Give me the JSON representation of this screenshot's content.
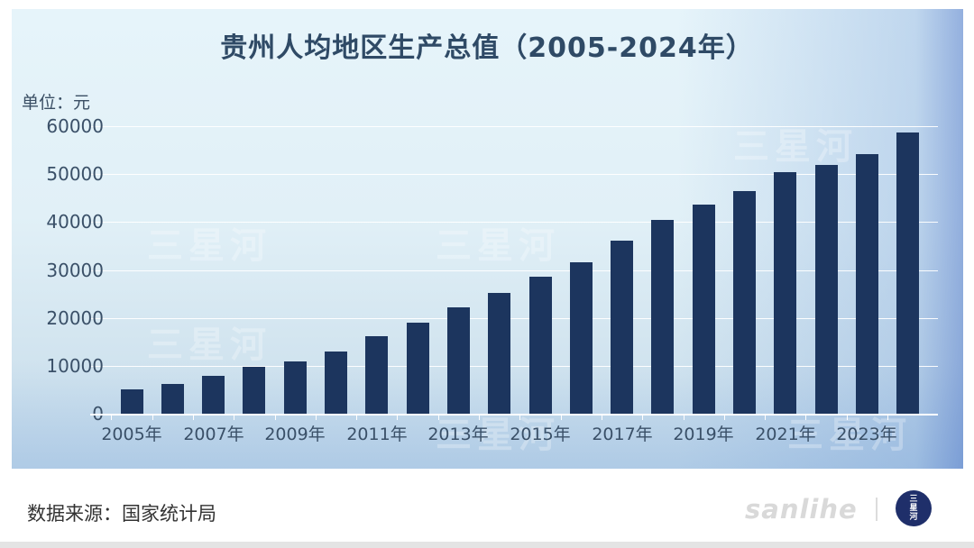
{
  "header": {
    "title": "贵州人均地区生产总值（2005-2024年）",
    "unit_label": "单位：元"
  },
  "axis": {
    "y_ticks": [
      "60000",
      "50000",
      "40000",
      "30000",
      "20000",
      "10000",
      "0"
    ],
    "x_labels": [
      "2005年",
      "2007年",
      "2009年",
      "2011年",
      "2013年",
      "2015年",
      "2017年",
      "2019年",
      "2021年",
      "2023年"
    ]
  },
  "watermark": {
    "text": "三星河"
  },
  "footer": {
    "source": "数据来源：国家统计局",
    "brand_text": "sanlihe",
    "logo_lines": [
      "三",
      "星",
      "河"
    ]
  },
  "colors": {
    "bar": "#1c355e",
    "title": "#2f4a66",
    "logo_bg": "#1f2f6a"
  },
  "chart_data": {
    "type": "bar",
    "title": "贵州人均地区生产总值（2005-2024年）",
    "xlabel": "",
    "ylabel": "单位：元",
    "ylim": [
      0,
      60000
    ],
    "y_ticks": [
      0,
      10000,
      20000,
      30000,
      40000,
      50000,
      60000
    ],
    "grid": true,
    "legend": null,
    "categories": [
      "2005年",
      "2006年",
      "2007年",
      "2008年",
      "2009年",
      "2010年",
      "2011年",
      "2012年",
      "2013年",
      "2014年",
      "2015年",
      "2016年",
      "2017年",
      "2018年",
      "2019年",
      "2020年",
      "2021年",
      "2022年",
      "2023年",
      "2024年"
    ],
    "values": [
      5100,
      6200,
      7900,
      9700,
      11000,
      13000,
      16200,
      19000,
      22200,
      25200,
      28500,
      31600,
      36100,
      40400,
      43700,
      46400,
      50500,
      52000,
      54200,
      58600
    ],
    "source": "数据来源：国家统计局"
  }
}
